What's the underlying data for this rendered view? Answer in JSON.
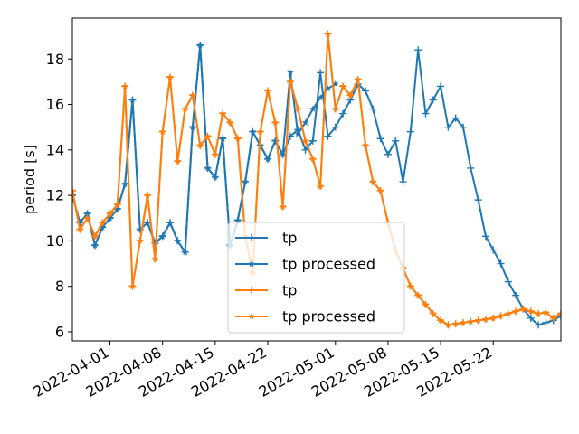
{
  "chart_data": {
    "type": "line",
    "title": "",
    "xlabel": "",
    "ylabel": "period [s]",
    "xlim": [
      "2022-03-27",
      "2022-05-31"
    ],
    "ylim": [
      5.6,
      19.8
    ],
    "x_ticks": [
      "2022-04-01",
      "2022-04-08",
      "2022-04-15",
      "2022-04-22",
      "2022-05-01",
      "2022-05-08",
      "2022-05-15",
      "2022-05-22"
    ],
    "y_ticks": [
      6,
      8,
      10,
      12,
      14,
      16,
      18
    ],
    "grid": false,
    "legend_position": "lower-center",
    "colors": {
      "series_a": "#1f77b4",
      "series_b": "#ff7f0e"
    },
    "series": [
      {
        "name": "tp",
        "color": "#1f77b4",
        "marker": "+",
        "x": [
          "2022-03-27",
          "2022-03-28",
          "2022-03-29",
          "2022-03-30",
          "2022-03-31",
          "2022-04-01",
          "2022-04-02",
          "2022-04-03",
          "2022-04-04",
          "2022-04-05",
          "2022-04-06",
          "2022-04-07",
          "2022-04-08",
          "2022-04-09",
          "2022-04-10",
          "2022-04-11",
          "2022-04-12",
          "2022-04-13",
          "2022-04-14",
          "2022-04-15",
          "2022-04-16",
          "2022-04-17",
          "2022-04-18",
          "2022-04-19",
          "2022-04-20",
          "2022-04-21",
          "2022-04-22",
          "2022-04-23",
          "2022-04-24",
          "2022-04-25",
          "2022-04-26",
          "2022-04-27",
          "2022-04-28",
          "2022-04-29",
          "2022-04-30",
          "2022-05-01",
          "2022-05-02",
          "2022-05-03",
          "2022-05-04",
          "2022-05-05",
          "2022-05-06",
          "2022-05-07",
          "2022-05-08",
          "2022-05-09",
          "2022-05-10",
          "2022-05-11",
          "2022-05-12",
          "2022-05-13",
          "2022-05-14",
          "2022-05-15",
          "2022-05-16",
          "2022-05-17",
          "2022-05-18",
          "2022-05-19",
          "2022-05-20",
          "2022-05-21",
          "2022-05-22",
          "2022-05-23",
          "2022-05-24",
          "2022-05-25",
          "2022-05-26",
          "2022-05-27",
          "2022-05-28",
          "2022-05-29",
          "2022-05-30",
          "2022-05-31"
        ],
        "y": [
          12.0,
          10.8,
          11.2,
          9.8,
          10.6,
          11.0,
          11.4,
          12.5,
          16.2,
          10.5,
          10.8,
          9.9,
          10.2,
          10.8,
          10.0,
          9.5,
          15.0,
          18.6,
          13.2,
          12.8,
          14.5,
          9.8,
          10.9,
          12.6,
          14.8,
          14.2,
          13.6,
          14.4,
          13.8,
          14.6,
          14.9,
          14.0,
          14.4,
          17.4,
          14.6,
          15.0,
          15.6,
          16.2,
          16.9,
          16.6,
          15.8,
          14.5,
          13.8,
          14.4,
          12.6,
          14.8,
          18.4,
          15.6,
          16.2,
          16.8,
          15.0,
          15.4,
          15.0,
          13.2,
          11.8,
          10.2,
          9.6,
          9.0,
          8.2,
          7.6,
          7.0,
          6.6,
          6.3,
          6.4,
          6.5,
          6.7
        ]
      },
      {
        "name": "tp processed",
        "color": "#1f77b4",
        "marker": "*",
        "x": [
          "2022-03-27",
          "2022-03-28",
          "2022-03-29",
          "2022-03-30",
          "2022-03-31",
          "2022-04-01",
          "2022-04-02",
          "2022-04-03",
          "2022-04-04",
          "2022-04-05",
          "2022-04-06",
          "2022-04-07",
          "2022-04-08",
          "2022-04-09",
          "2022-04-10",
          "2022-04-11",
          "2022-04-12",
          "2022-04-13",
          "2022-04-14",
          "2022-04-15",
          "2022-04-16",
          "2022-04-17",
          "2022-04-18",
          "2022-04-19",
          "2022-04-20",
          "2022-04-21",
          "2022-04-22",
          "2022-04-23",
          "2022-04-24",
          "2022-04-25",
          "2022-04-26",
          "2022-04-27",
          "2022-04-28",
          "2022-04-29",
          "2022-04-30",
          "2022-05-01"
        ],
        "y": [
          12.0,
          10.8,
          11.2,
          9.8,
          10.6,
          11.0,
          11.4,
          12.5,
          16.2,
          10.5,
          10.8,
          9.9,
          10.2,
          10.8,
          10.0,
          9.5,
          15.0,
          18.6,
          13.2,
          12.8,
          14.5,
          9.8,
          10.9,
          12.6,
          14.8,
          14.2,
          13.6,
          14.4,
          13.8,
          17.4,
          14.7,
          15.2,
          15.8,
          16.3,
          16.7,
          16.9
        ]
      },
      {
        "name": "tp",
        "color": "#ff7f0e",
        "marker": "+",
        "x": [
          "2022-03-27",
          "2022-03-28",
          "2022-03-29",
          "2022-03-30",
          "2022-03-31",
          "2022-04-01",
          "2022-04-02",
          "2022-04-03",
          "2022-04-04",
          "2022-04-05",
          "2022-04-06",
          "2022-04-07",
          "2022-04-08",
          "2022-04-09",
          "2022-04-10",
          "2022-04-11",
          "2022-04-12",
          "2022-04-13",
          "2022-04-14",
          "2022-04-15",
          "2022-04-16",
          "2022-04-17",
          "2022-04-18",
          "2022-04-19",
          "2022-04-20",
          "2022-04-21",
          "2022-04-22",
          "2022-04-23",
          "2022-04-24",
          "2022-04-25",
          "2022-04-26",
          "2022-04-27",
          "2022-04-28",
          "2022-04-29",
          "2022-04-30",
          "2022-05-01",
          "2022-05-02",
          "2022-05-03",
          "2022-05-04",
          "2022-05-05",
          "2022-05-06",
          "2022-05-07",
          "2022-05-08",
          "2022-05-09",
          "2022-05-10",
          "2022-05-11",
          "2022-05-12",
          "2022-05-13",
          "2022-05-14",
          "2022-05-15",
          "2022-05-16",
          "2022-05-17",
          "2022-05-18",
          "2022-05-19",
          "2022-05-20",
          "2022-05-21",
          "2022-05-22",
          "2022-05-23",
          "2022-05-24",
          "2022-05-25",
          "2022-05-26",
          "2022-05-27",
          "2022-05-28",
          "2022-05-29",
          "2022-05-30",
          "2022-05-31"
        ],
        "y": [
          12.2,
          10.5,
          11.0,
          10.2,
          10.8,
          11.2,
          11.6,
          16.8,
          8.0,
          10.0,
          12.0,
          9.2,
          14.8,
          17.2,
          13.5,
          15.8,
          16.4,
          14.2,
          14.6,
          13.8,
          15.6,
          15.2,
          14.5,
          10.2,
          8.6,
          14.8,
          16.6,
          15.2,
          11.5,
          17.0,
          15.8,
          14.4,
          13.6,
          12.4,
          19.1,
          15.8,
          16.8,
          16.4,
          17.1,
          14.2,
          12.6,
          12.2,
          10.8,
          9.6,
          8.8,
          8.0,
          7.6,
          7.2,
          6.8,
          6.5,
          6.3,
          6.35,
          6.4,
          6.45,
          6.5,
          6.55,
          6.6,
          6.7,
          6.8,
          6.9,
          7.0,
          6.9,
          6.8,
          6.85,
          6.6,
          6.8
        ]
      },
      {
        "name": "tp processed",
        "color": "#ff7f0e",
        "marker": "*",
        "x": [
          "2022-03-27",
          "2022-03-28",
          "2022-03-29",
          "2022-03-30",
          "2022-03-31",
          "2022-04-01",
          "2022-04-02",
          "2022-04-03",
          "2022-04-04",
          "2022-04-05",
          "2022-04-06",
          "2022-04-07",
          "2022-04-08",
          "2022-04-09",
          "2022-04-10",
          "2022-04-11",
          "2022-04-12",
          "2022-04-13",
          "2022-04-14",
          "2022-04-15",
          "2022-04-16",
          "2022-04-17",
          "2022-04-18",
          "2022-04-19",
          "2022-04-20",
          "2022-04-21",
          "2022-04-22",
          "2022-04-23",
          "2022-04-24",
          "2022-04-25",
          "2022-04-26",
          "2022-04-27",
          "2022-04-28",
          "2022-04-29",
          "2022-04-30",
          "2022-05-01",
          "2022-05-02",
          "2022-05-03",
          "2022-05-04",
          "2022-05-05",
          "2022-05-06",
          "2022-05-07",
          "2022-05-08",
          "2022-05-09",
          "2022-05-10",
          "2022-05-11",
          "2022-05-12",
          "2022-05-13",
          "2022-05-14",
          "2022-05-15",
          "2022-05-16",
          "2022-05-17",
          "2022-05-18",
          "2022-05-19",
          "2022-05-20",
          "2022-05-21",
          "2022-05-22",
          "2022-05-23",
          "2022-05-24",
          "2022-05-25",
          "2022-05-26",
          "2022-05-27",
          "2022-05-28",
          "2022-05-29",
          "2022-05-30",
          "2022-05-31"
        ],
        "y": [
          12.2,
          10.5,
          11.0,
          10.2,
          10.8,
          11.2,
          11.6,
          16.8,
          8.0,
          10.0,
          12.0,
          9.2,
          14.8,
          17.2,
          13.5,
          15.8,
          16.4,
          14.2,
          14.6,
          13.8,
          15.6,
          15.2,
          14.5,
          10.2,
          8.6,
          14.8,
          16.6,
          15.2,
          11.5,
          17.0,
          15.8,
          14.4,
          13.6,
          12.4,
          19.1,
          15.8,
          16.8,
          16.4,
          17.1,
          14.2,
          12.6,
          12.2,
          10.8,
          9.6,
          8.8,
          8.0,
          7.6,
          7.2,
          6.8,
          6.5,
          6.3,
          6.35,
          6.4,
          6.45,
          6.5,
          6.55,
          6.6,
          6.7,
          6.8,
          6.9,
          7.0,
          6.9,
          6.8,
          6.85,
          6.6,
          6.8
        ]
      }
    ]
  }
}
